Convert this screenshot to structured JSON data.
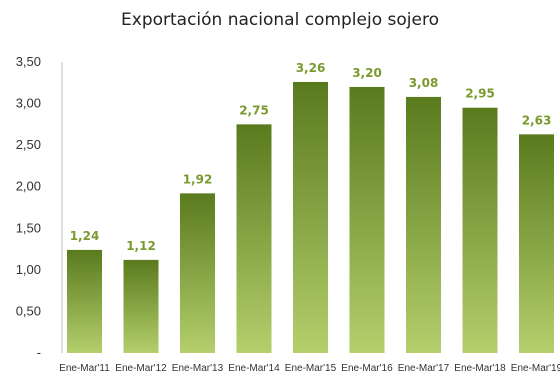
{
  "chart_data": {
    "type": "bar",
    "title": "Exportación nacional complejo sojero",
    "xlabel": "",
    "ylabel": "",
    "categories": [
      "Ene-Mar'11",
      "Ene-Mar'12",
      "Ene-Mar'13",
      "Ene-Mar'14",
      "Ene-Mar'15",
      "Ene-Mar'16",
      "Ene-Mar'17",
      "Ene-Mar'18",
      "Ene-Mar'19"
    ],
    "values": [
      1.24,
      1.12,
      1.92,
      2.75,
      3.26,
      3.2,
      3.08,
      2.95,
      2.63
    ],
    "data_labels": [
      "1,24",
      "1,12",
      "1,92",
      "2,75",
      "3,26",
      "3,20",
      "3,08",
      "2,95",
      "2,63"
    ],
    "y_ticks": [
      "-",
      "0,50",
      "1,00",
      "1,50",
      "2,00",
      "2,50",
      "3,00",
      "3,50"
    ],
    "ylim": [
      0,
      3.5
    ],
    "grid": false,
    "legend": "none",
    "colors": {
      "bar_top": "#5a7a1e",
      "bar_bottom": "#b4cf6c",
      "label": "#7a9a2e"
    }
  }
}
